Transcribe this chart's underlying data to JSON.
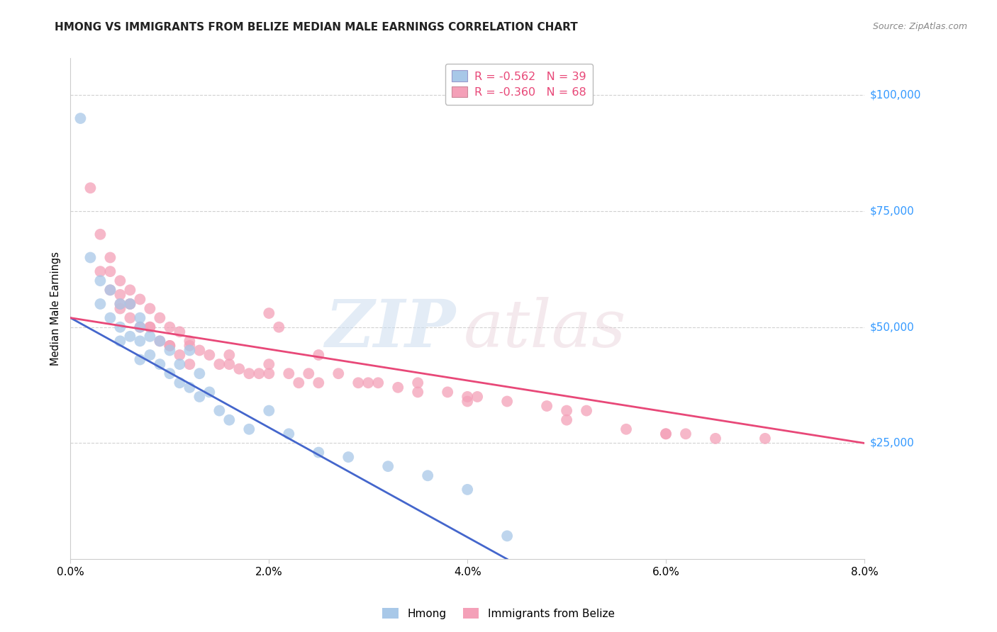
{
  "title": "HMONG VS IMMIGRANTS FROM BELIZE MEDIAN MALE EARNINGS CORRELATION CHART",
  "source": "Source: ZipAtlas.com",
  "ylabel": "Median Male Earnings",
  "ytick_labels": [
    "$25,000",
    "$50,000",
    "$75,000",
    "$100,000"
  ],
  "ytick_vals": [
    25000,
    50000,
    75000,
    100000
  ],
  "xtick_labels": [
    "0.0%",
    "2.0%",
    "4.0%",
    "6.0%",
    "8.0%"
  ],
  "xtick_vals": [
    0.0,
    0.02,
    0.04,
    0.06,
    0.08
  ],
  "xlim": [
    0.0,
    0.08
  ],
  "ylim": [
    0,
    108000
  ],
  "legend1_R": "-0.562",
  "legend1_N": "39",
  "legend2_R": "-0.360",
  "legend2_N": "68",
  "hmong_color": "#a8c8e8",
  "belize_color": "#f4a0b8",
  "hmong_line_color": "#4466cc",
  "belize_line_color": "#e84878",
  "hmong_x": [
    0.001,
    0.002,
    0.003,
    0.003,
    0.004,
    0.004,
    0.005,
    0.005,
    0.005,
    0.006,
    0.006,
    0.007,
    0.007,
    0.007,
    0.007,
    0.008,
    0.008,
    0.009,
    0.009,
    0.01,
    0.01,
    0.011,
    0.011,
    0.012,
    0.012,
    0.013,
    0.013,
    0.014,
    0.015,
    0.016,
    0.018,
    0.02,
    0.022,
    0.025,
    0.028,
    0.032,
    0.036,
    0.04,
    0.044
  ],
  "hmong_y": [
    95000,
    65000,
    60000,
    55000,
    58000,
    52000,
    55000,
    50000,
    47000,
    55000,
    48000,
    52000,
    50000,
    47000,
    43000,
    48000,
    44000,
    47000,
    42000,
    45000,
    40000,
    42000,
    38000,
    45000,
    37000,
    40000,
    35000,
    36000,
    32000,
    30000,
    28000,
    32000,
    27000,
    23000,
    22000,
    20000,
    18000,
    15000,
    5000
  ],
  "belize_x": [
    0.002,
    0.003,
    0.004,
    0.004,
    0.005,
    0.005,
    0.005,
    0.006,
    0.006,
    0.006,
    0.007,
    0.007,
    0.008,
    0.008,
    0.009,
    0.009,
    0.01,
    0.01,
    0.011,
    0.011,
    0.012,
    0.012,
    0.013,
    0.014,
    0.015,
    0.016,
    0.017,
    0.018,
    0.019,
    0.02,
    0.021,
    0.022,
    0.023,
    0.024,
    0.025,
    0.027,
    0.029,
    0.031,
    0.033,
    0.035,
    0.038,
    0.041,
    0.044,
    0.048,
    0.052,
    0.056,
    0.06,
    0.065,
    0.003,
    0.006,
    0.012,
    0.02,
    0.03,
    0.04,
    0.05,
    0.06,
    0.004,
    0.008,
    0.016,
    0.025,
    0.035,
    0.05,
    0.062,
    0.07,
    0.005,
    0.01,
    0.02,
    0.04
  ],
  "belize_y": [
    80000,
    70000,
    65000,
    62000,
    60000,
    57000,
    54000,
    58000,
    55000,
    52000,
    56000,
    50000,
    54000,
    50000,
    52000,
    47000,
    50000,
    46000,
    49000,
    44000,
    47000,
    42000,
    45000,
    44000,
    42000,
    42000,
    41000,
    40000,
    40000,
    53000,
    50000,
    40000,
    38000,
    40000,
    44000,
    40000,
    38000,
    38000,
    37000,
    38000,
    36000,
    35000,
    34000,
    33000,
    32000,
    28000,
    27000,
    26000,
    62000,
    55000,
    46000,
    42000,
    38000,
    34000,
    30000,
    27000,
    58000,
    50000,
    44000,
    38000,
    36000,
    32000,
    27000,
    26000,
    55000,
    46000,
    40000,
    35000
  ]
}
